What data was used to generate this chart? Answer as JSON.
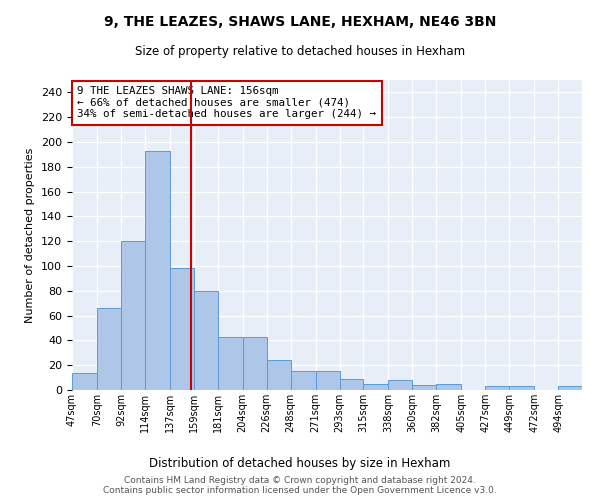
{
  "title": "9, THE LEAZES, SHAWS LANE, HEXHAM, NE46 3BN",
  "subtitle": "Size of property relative to detached houses in Hexham",
  "xlabel": "Distribution of detached houses by size in Hexham",
  "ylabel": "Number of detached properties",
  "bar_values": [
    14,
    66,
    120,
    193,
    98,
    80,
    43,
    43,
    24,
    15,
    15,
    9,
    5,
    8,
    4,
    5,
    0,
    3,
    3,
    0,
    3
  ],
  "bin_labels": [
    "47sqm",
    "70sqm",
    "92sqm",
    "114sqm",
    "137sqm",
    "159sqm",
    "181sqm",
    "204sqm",
    "226sqm",
    "248sqm",
    "271sqm",
    "293sqm",
    "315sqm",
    "338sqm",
    "360sqm",
    "382sqm",
    "405sqm",
    "427sqm",
    "449sqm",
    "472sqm",
    "494sqm"
  ],
  "bin_edges": [
    47,
    70,
    92,
    114,
    137,
    159,
    181,
    204,
    226,
    248,
    271,
    293,
    315,
    338,
    360,
    382,
    405,
    427,
    449,
    472,
    494,
    516
  ],
  "bar_color": "#aec6e8",
  "bar_edge_color": "#5b9bd5",
  "property_size": 156,
  "vline_color": "#cc0000",
  "annotation_text": "9 THE LEAZES SHAWS LANE: 156sqm\n← 66% of detached houses are smaller (474)\n34% of semi-detached houses are larger (244) →",
  "annotation_box_color": "#ffffff",
  "annotation_box_edge": "#cc0000",
  "ylim": [
    0,
    250
  ],
  "yticks": [
    0,
    20,
    40,
    60,
    80,
    100,
    120,
    140,
    160,
    180,
    200,
    220,
    240
  ],
  "bg_color": "#e8eef8",
  "footer_text": "Contains HM Land Registry data © Crown copyright and database right 2024.\nContains public sector information licensed under the Open Government Licence v3.0."
}
